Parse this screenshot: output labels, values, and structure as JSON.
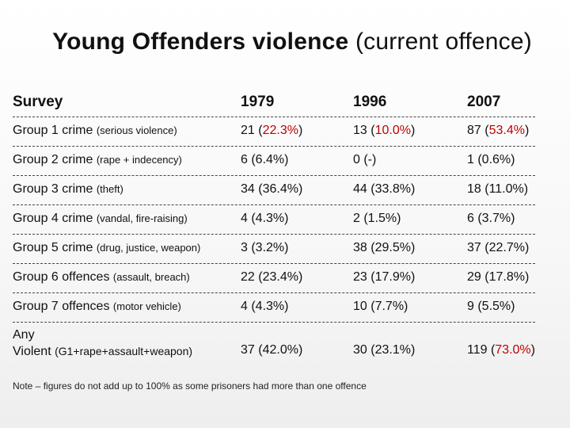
{
  "title": {
    "bold": "Young Offenders violence",
    "rest": "(current offence)"
  },
  "header": {
    "survey": "Survey",
    "y1979": "1979",
    "y1996": "1996",
    "y2007": "2007"
  },
  "rows": [
    {
      "main": "Group 1 crime",
      "sub": "(serious violence)",
      "v1979": {
        "pre": "21 (",
        "hi": "22.3%",
        "post": ")"
      },
      "v1996": {
        "pre": "13 (",
        "hi": "10.0%",
        "post": ")"
      },
      "v2007": {
        "pre": "87 (",
        "hi": "53.4%",
        "post": ")"
      }
    },
    {
      "main": "Group 2 crime",
      "sub": "(rape + indecency)",
      "v1979": {
        "pre": "6 (6.4%)",
        "hi": "",
        "post": ""
      },
      "v1996": {
        "pre": "0 (-)",
        "hi": "",
        "post": ""
      },
      "v2007": {
        "pre": "1 (0.6%)",
        "hi": "",
        "post": ""
      }
    },
    {
      "main": "Group 3 crime",
      "sub": "(theft)",
      "v1979": {
        "pre": "34 (36.4%)",
        "hi": "",
        "post": ""
      },
      "v1996": {
        "pre": "44 (33.8%)",
        "hi": "",
        "post": ""
      },
      "v2007": {
        "pre": "18 (11.0%)",
        "hi": "",
        "post": ""
      }
    },
    {
      "main": "Group 4 crime",
      "sub": "(vandal, fire-raising)",
      "v1979": {
        "pre": "4 (4.3%)",
        "hi": "",
        "post": ""
      },
      "v1996": {
        "pre": "2 (1.5%)",
        "hi": "",
        "post": ""
      },
      "v2007": {
        "pre": "6 (3.7%)",
        "hi": "",
        "post": ""
      }
    },
    {
      "main": "Group 5 crime",
      "sub": "(drug, justice, weapon)",
      "v1979": {
        "pre": "3 (3.2%)",
        "hi": "",
        "post": ""
      },
      "v1996": {
        "pre": "38 (29.5%)",
        "hi": "",
        "post": ""
      },
      "v2007": {
        "pre": "37 (22.7%)",
        "hi": "",
        "post": ""
      }
    },
    {
      "main": "Group 6 offences",
      "sub": "(assault, breach)",
      "v1979": {
        "pre": "22 (23.4%)",
        "hi": "",
        "post": ""
      },
      "v1996": {
        "pre": "23 (17.9%)",
        "hi": "",
        "post": ""
      },
      "v2007": {
        "pre": "29 (17.8%)",
        "hi": "",
        "post": ""
      }
    },
    {
      "main": "Group 7 offences",
      "sub": "(motor vehicle)",
      "v1979": {
        "pre": "4 (4.3%)",
        "hi": "",
        "post": ""
      },
      "v1996": {
        "pre": "10 (7.7%)",
        "hi": "",
        "post": ""
      },
      "v2007": {
        "pre": "9 (5.5%)",
        "hi": "",
        "post": ""
      }
    }
  ],
  "any_row": {
    "line1": "Any",
    "line2_main": "Violent",
    "line2_sub": "(G1+rape+assault+weapon)",
    "v1979": "37 (42.0%)",
    "v1996": "30 (23.1%)",
    "v2007": {
      "pre": "119 (",
      "hi": "73.0%",
      "post": ")"
    }
  },
  "note": "Note – figures do not add up to 100% as some prisoners had more than one offence",
  "colors": {
    "highlight": "#c00000",
    "text": "#111111"
  }
}
